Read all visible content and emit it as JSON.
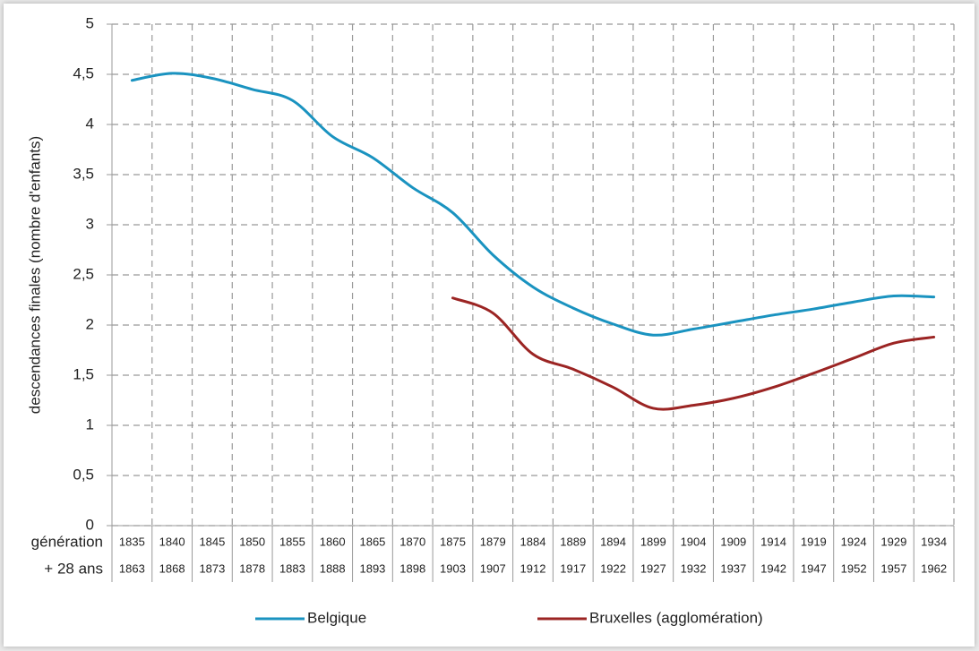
{
  "chart_data": {
    "type": "line",
    "y_label": "descendances finales (nombre d'enfants)",
    "x_row_labels": [
      "génération",
      "+ 28 ans"
    ],
    "categories": [
      "1835",
      "1840",
      "1845",
      "1850",
      "1855",
      "1860",
      "1865",
      "1870",
      "1875",
      "1879",
      "1884",
      "1889",
      "1894",
      "1899",
      "1904",
      "1909",
      "1914",
      "1919",
      "1924",
      "1929",
      "1934"
    ],
    "categories_secondary": [
      "1863",
      "1868",
      "1873",
      "1878",
      "1883",
      "1888",
      "1893",
      "1898",
      "1903",
      "1907",
      "1912",
      "1917",
      "1922",
      "1927",
      "1932",
      "1937",
      "1942",
      "1947",
      "1952",
      "1957",
      "1962"
    ],
    "series": [
      {
        "name": "Belgique",
        "color": "#1a93c0",
        "values": [
          4.44,
          4.51,
          4.46,
          4.35,
          4.24,
          3.88,
          3.67,
          3.37,
          3.12,
          2.7,
          2.38,
          2.17,
          2.01,
          1.9,
          1.96,
          2.03,
          2.1,
          2.16,
          2.23,
          2.29,
          2.28
        ]
      },
      {
        "name": "Bruxelles (agglomération)",
        "color": "#9b2423",
        "values": [
          null,
          null,
          null,
          null,
          null,
          null,
          null,
          null,
          2.27,
          2.12,
          1.71,
          1.56,
          1.38,
          1.17,
          1.2,
          1.27,
          1.38,
          1.52,
          1.67,
          1.82,
          1.88
        ]
      }
    ],
    "ylim": [
      0,
      5
    ],
    "yticks": [
      0,
      {
        "value": 0.5,
        "label": "0,5"
      },
      1,
      {
        "value": 1.5,
        "label": "1,5"
      },
      2,
      {
        "value": 2.5,
        "label": "2,5"
      },
      3,
      {
        "value": 3.5,
        "label": "3,5"
      },
      4,
      {
        "value": 4.5,
        "label": "4,5"
      },
      5
    ],
    "grid": true
  }
}
